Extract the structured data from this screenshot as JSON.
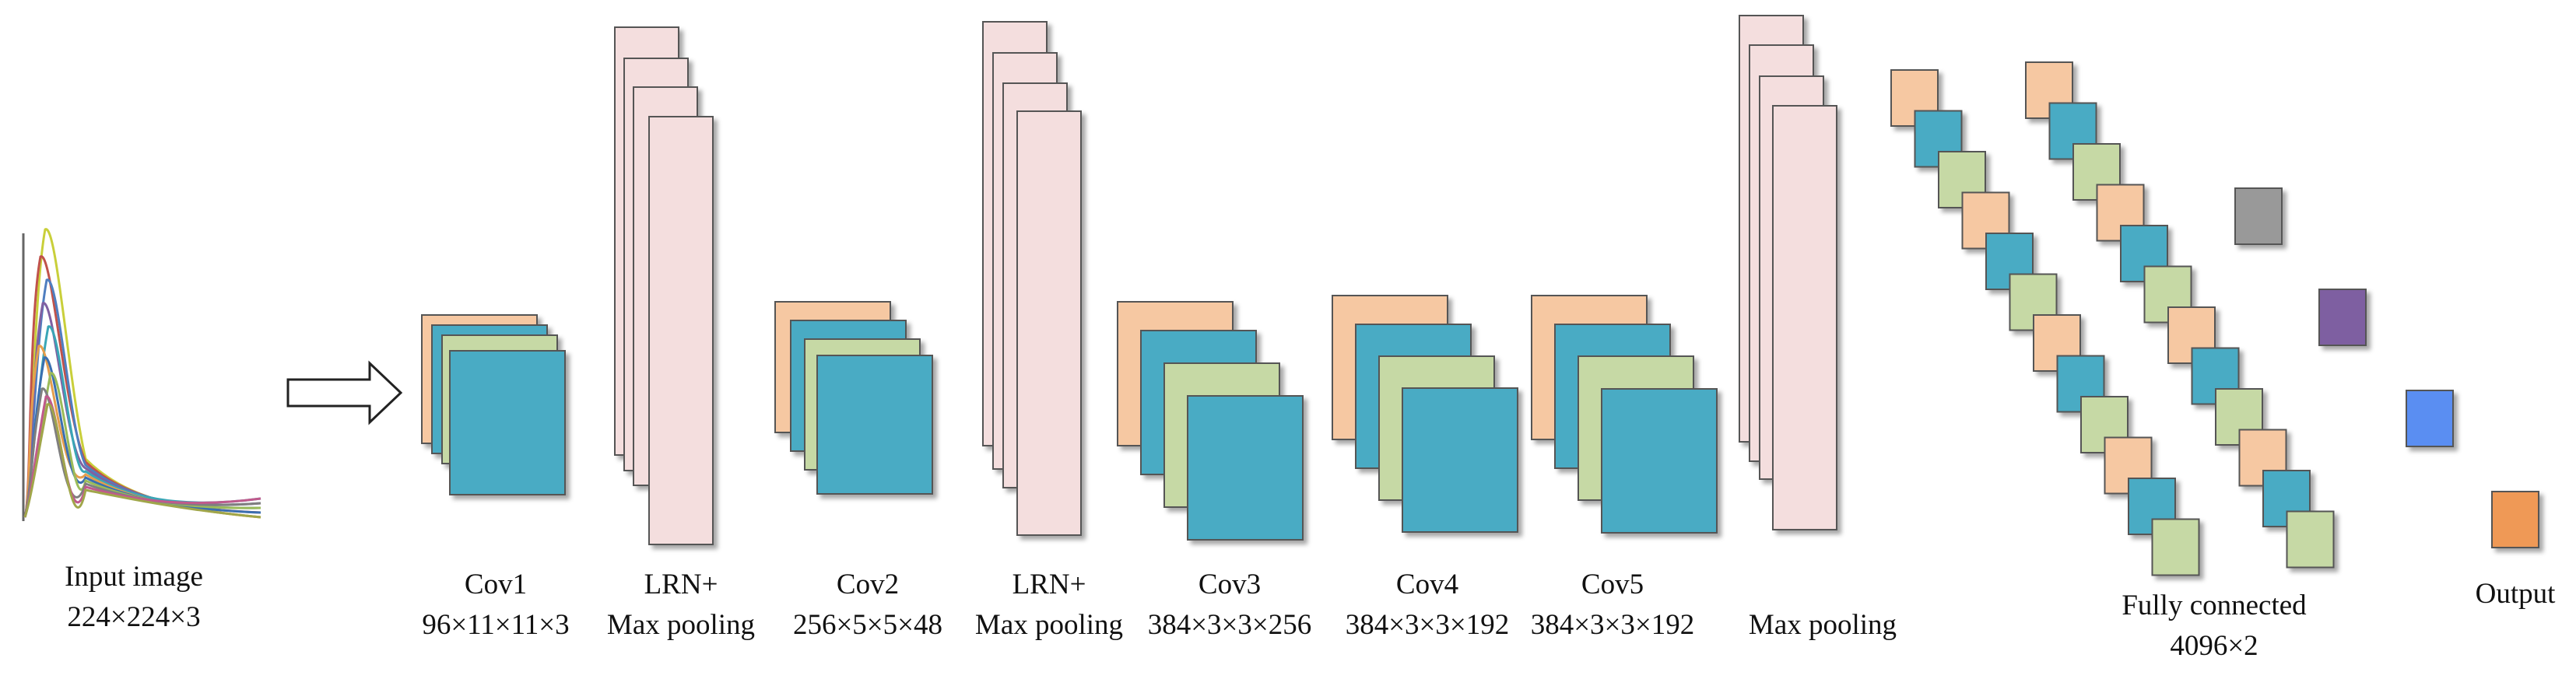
{
  "colors": {
    "orange": "#F6C8A2",
    "teal": "#48ABC4",
    "green": "#C6D9A5",
    "pink": "#F4DEDE",
    "gray": "#999999",
    "purple": "#7E5EA1",
    "blue": "#5A8EF2",
    "output_orange": "#EF9957",
    "line": "#555555"
  },
  "input": {
    "label": "Input image",
    "size": "224×224×3",
    "curve_colors": [
      "#C9CF3A",
      "#C0524B",
      "#4F7EC0",
      "#8060A2",
      "#3AA6B6",
      "#E59E4D",
      "#3A6FB0",
      "#9BBB59",
      "#7F7F7F",
      "#C05A8C",
      "#A0A64A"
    ]
  },
  "layers": [
    {
      "id": "cov1",
      "name": "Cov1",
      "dims": "96×11×11×3"
    },
    {
      "id": "lrn1",
      "name": "LRN+",
      "dims": "Max pooling"
    },
    {
      "id": "cov2",
      "name": "Cov2",
      "dims": "256×5×5×48"
    },
    {
      "id": "lrn2",
      "name": "LRN+",
      "dims": "Max pooling"
    },
    {
      "id": "cov3",
      "name": "Cov3",
      "dims": "384×3×3×256"
    },
    {
      "id": "cov4",
      "name": "Cov4",
      "dims": "384×3×3×192"
    },
    {
      "id": "cov5",
      "name": "Cov5",
      "dims": "384×3×3×192"
    },
    {
      "id": "pool3",
      "name": "Max pooling",
      "dims": ""
    }
  ],
  "fully_connected": {
    "label": "Fully connected",
    "size": "4096×2"
  },
  "output": {
    "label": "Output"
  }
}
